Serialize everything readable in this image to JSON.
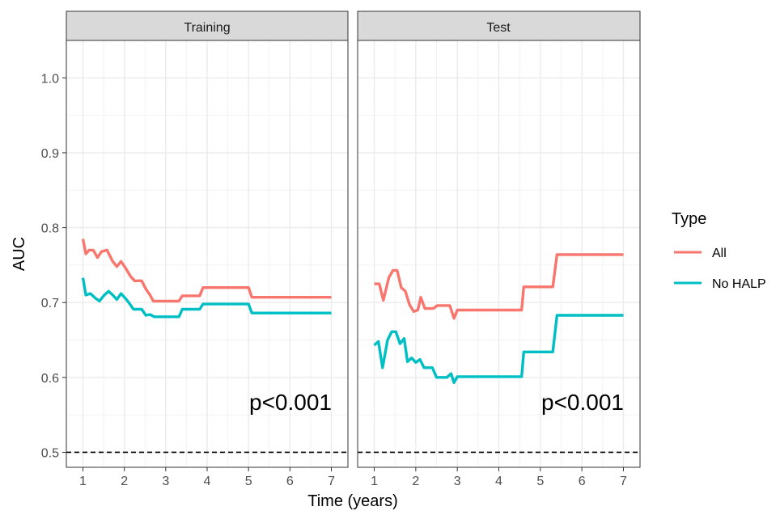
{
  "chart_data": {
    "type": "line",
    "xlabel": "Time (years)",
    "ylabel": "AUC",
    "xlim": [
      0.6,
      7.4
    ],
    "ylim": [
      0.48,
      1.05
    ],
    "x_ticks": [
      "1",
      "2",
      "3",
      "4",
      "5",
      "6",
      "7"
    ],
    "y_ticks": [
      "0.5",
      "0.6",
      "0.7",
      "0.8",
      "0.9",
      "1.0"
    ],
    "grid": true,
    "reference_line": {
      "y": 0.5,
      "style": "dashed"
    },
    "legend": {
      "title": "Type",
      "placement": "right",
      "entries": [
        {
          "label": "All",
          "color": "#F8766D"
        },
        {
          "label": "No HALP",
          "color": "#00BFC4"
        }
      ]
    },
    "panels": [
      {
        "title": "Training",
        "annotation": "p<0.001",
        "series": [
          {
            "name": "All",
            "color": "#F8766D",
            "points": [
              [
                1.0,
                0.785
              ],
              [
                1.07,
                0.765
              ],
              [
                1.15,
                0.77
              ],
              [
                1.25,
                0.77
              ],
              [
                1.35,
                0.76
              ],
              [
                1.45,
                0.768
              ],
              [
                1.58,
                0.77
              ],
              [
                1.72,
                0.755
              ],
              [
                1.82,
                0.748
              ],
              [
                1.92,
                0.755
              ],
              [
                2.03,
                0.746
              ],
              [
                2.15,
                0.735
              ],
              [
                2.25,
                0.729
              ],
              [
                2.42,
                0.729
              ],
              [
                2.52,
                0.718
              ],
              [
                2.62,
                0.71
              ],
              [
                2.7,
                0.702
              ],
              [
                3.32,
                0.702
              ],
              [
                3.4,
                0.709
              ],
              [
                3.82,
                0.709
              ],
              [
                3.9,
                0.72
              ],
              [
                5.0,
                0.72
              ],
              [
                5.08,
                0.707
              ],
              [
                7.0,
                0.707
              ]
            ]
          },
          {
            "name": "No HALP",
            "color": "#00BFC4",
            "points": [
              [
                1.0,
                0.733
              ],
              [
                1.07,
                0.71
              ],
              [
                1.18,
                0.712
              ],
              [
                1.3,
                0.706
              ],
              [
                1.4,
                0.702
              ],
              [
                1.5,
                0.709
              ],
              [
                1.62,
                0.715
              ],
              [
                1.72,
                0.71
              ],
              [
                1.82,
                0.704
              ],
              [
                1.92,
                0.712
              ],
              [
                2.02,
                0.706
              ],
              [
                2.12,
                0.699
              ],
              [
                2.22,
                0.691
              ],
              [
                2.42,
                0.691
              ],
              [
                2.52,
                0.683
              ],
              [
                2.62,
                0.684
              ],
              [
                2.72,
                0.681
              ],
              [
                3.32,
                0.681
              ],
              [
                3.4,
                0.691
              ],
              [
                3.82,
                0.691
              ],
              [
                3.9,
                0.698
              ],
              [
                5.0,
                0.698
              ],
              [
                5.08,
                0.686
              ],
              [
                7.0,
                0.686
              ]
            ]
          }
        ]
      },
      {
        "title": "Test",
        "annotation": "p<0.001",
        "series": [
          {
            "name": "All",
            "color": "#F8766D",
            "points": [
              [
                1.0,
                0.725
              ],
              [
                1.12,
                0.725
              ],
              [
                1.22,
                0.703
              ],
              [
                1.35,
                0.733
              ],
              [
                1.45,
                0.743
              ],
              [
                1.55,
                0.743
              ],
              [
                1.65,
                0.72
              ],
              [
                1.75,
                0.715
              ],
              [
                1.85,
                0.697
              ],
              [
                1.95,
                0.688
              ],
              [
                2.05,
                0.69
              ],
              [
                2.12,
                0.707
              ],
              [
                2.22,
                0.692
              ],
              [
                2.42,
                0.692
              ],
              [
                2.52,
                0.696
              ],
              [
                2.82,
                0.696
              ],
              [
                2.92,
                0.679
              ],
              [
                3.0,
                0.69
              ],
              [
                4.55,
                0.69
              ],
              [
                4.6,
                0.721
              ],
              [
                5.3,
                0.721
              ],
              [
                5.4,
                0.764
              ],
              [
                7.0,
                0.764
              ]
            ]
          },
          {
            "name": "No HALP",
            "color": "#00BFC4",
            "points": [
              [
                1.0,
                0.643
              ],
              [
                1.1,
                0.648
              ],
              [
                1.2,
                0.613
              ],
              [
                1.32,
                0.65
              ],
              [
                1.42,
                0.661
              ],
              [
                1.52,
                0.661
              ],
              [
                1.62,
                0.645
              ],
              [
                1.72,
                0.652
              ],
              [
                1.8,
                0.621
              ],
              [
                1.9,
                0.626
              ],
              [
                2.0,
                0.62
              ],
              [
                2.1,
                0.624
              ],
              [
                2.2,
                0.613
              ],
              [
                2.4,
                0.613
              ],
              [
                2.5,
                0.6
              ],
              [
                2.75,
                0.6
              ],
              [
                2.85,
                0.605
              ],
              [
                2.92,
                0.593
              ],
              [
                3.0,
                0.601
              ],
              [
                4.55,
                0.601
              ],
              [
                4.6,
                0.634
              ],
              [
                5.3,
                0.634
              ],
              [
                5.4,
                0.683
              ],
              [
                7.0,
                0.683
              ]
            ]
          }
        ]
      }
    ]
  }
}
